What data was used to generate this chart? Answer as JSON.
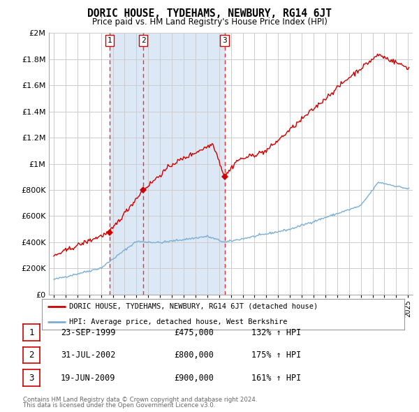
{
  "title": "DORIC HOUSE, TYDEHAMS, NEWBURY, RG14 6JT",
  "subtitle": "Price paid vs. HM Land Registry's House Price Index (HPI)",
  "transactions": [
    {
      "label": "1",
      "date_num": 1999.72,
      "price": 475000,
      "text": "23-SEP-1999",
      "amount": "£475,000",
      "pct": "132% ↑ HPI"
    },
    {
      "label": "2",
      "date_num": 2002.58,
      "price": 800000,
      "text": "31-JUL-2002",
      "amount": "£800,000",
      "pct": "175% ↑ HPI"
    },
    {
      "label": "3",
      "date_num": 2009.47,
      "price": 900000,
      "text": "19-JUN-2009",
      "amount": "£900,000",
      "pct": "161% ↑ HPI"
    }
  ],
  "red_line_label": "DORIC HOUSE, TYDEHAMS, NEWBURY, RG14 6JT (detached house)",
  "blue_line_label": "HPI: Average price, detached house, West Berkshire",
  "footnote1": "Contains HM Land Registry data © Crown copyright and database right 2024.",
  "footnote2": "This data is licensed under the Open Government Licence v3.0.",
  "ylim": [
    0,
    2000000
  ],
  "xlim_start": 1994.6,
  "xlim_end": 2025.4,
  "red_color": "#cc0000",
  "blue_color": "#7aaed6",
  "shade_color": "#dce8f5",
  "dashed_color": "#dd3333",
  "bg_color": "#ffffff",
  "grid_color": "#cccccc",
  "yticks": [
    0,
    200000,
    400000,
    600000,
    800000,
    1000000,
    1200000,
    1400000,
    1600000,
    1800000,
    2000000
  ]
}
